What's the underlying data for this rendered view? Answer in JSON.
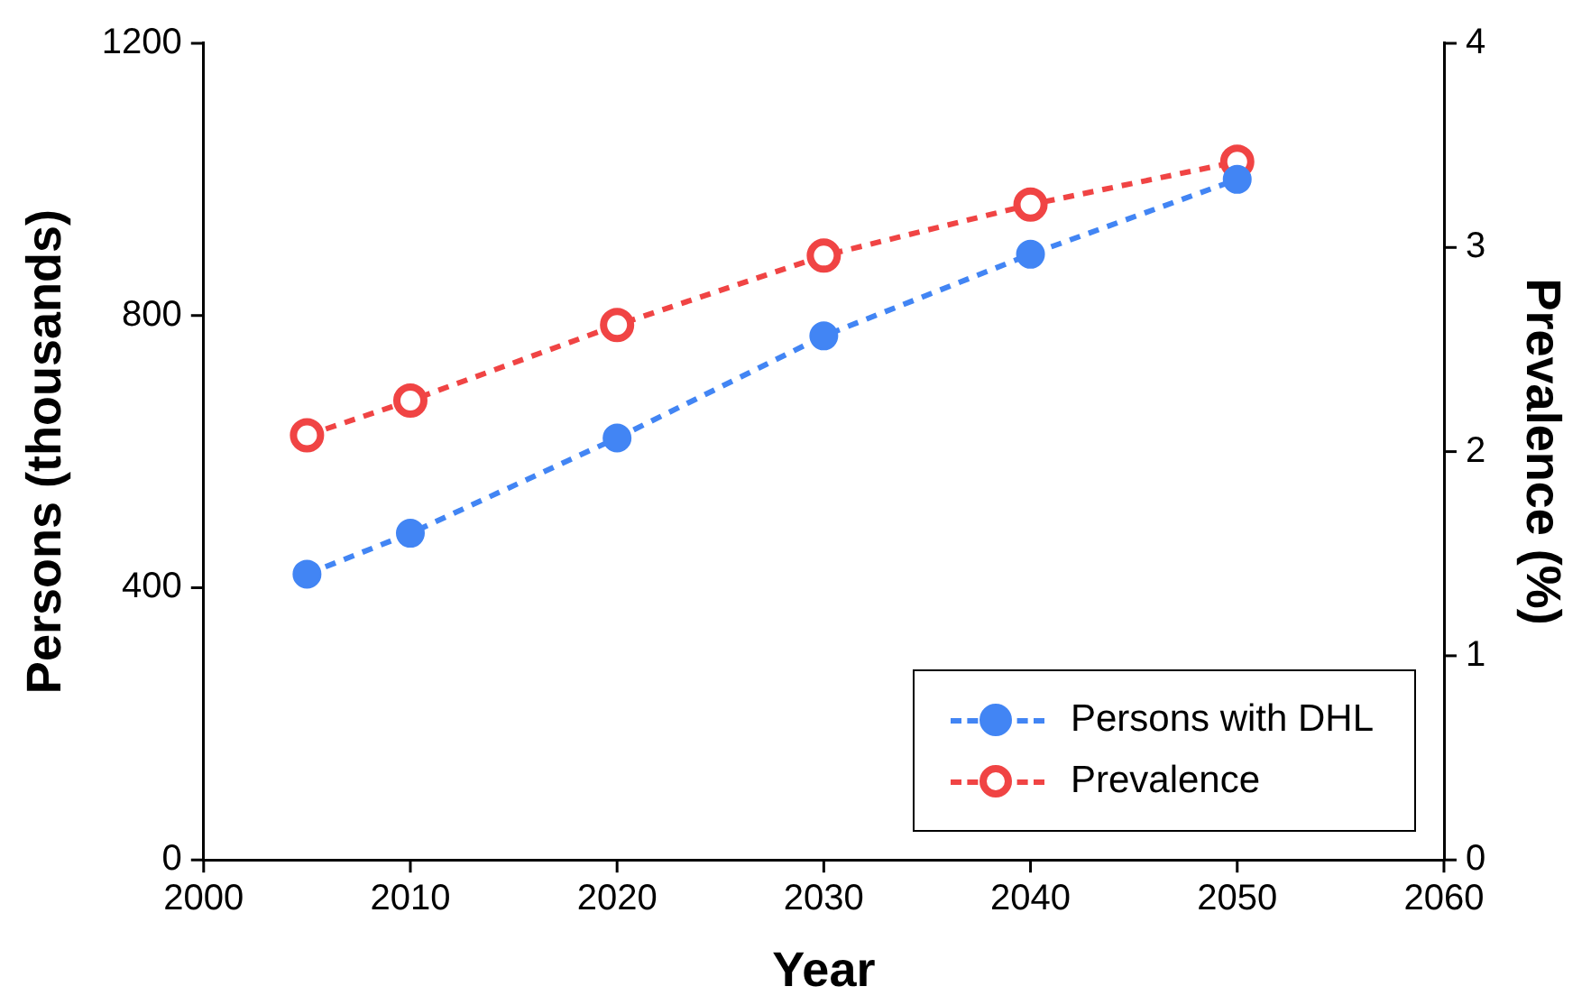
{
  "chart_data": {
    "type": "line",
    "xlabel": "Year",
    "ylabel": "Persons (thousands)",
    "y2label": "Prevalence (%)",
    "x": [
      2005,
      2010,
      2020,
      2030,
      2040,
      2050
    ],
    "series": [
      {
        "name": "Persons with DHL",
        "color": "#4285f4",
        "values": [
          420,
          480,
          620,
          770,
          890,
          1000
        ]
      },
      {
        "name": "Prevalence",
        "color": "#f04444",
        "axis": "y2",
        "values": [
          2.08,
          2.25,
          2.62,
          2.96,
          3.21,
          3.42
        ]
      }
    ],
    "xlim": [
      2000,
      2060
    ],
    "xticks": [
      2000,
      2010,
      2020,
      2030,
      2040,
      2050,
      2060
    ],
    "ylim": [
      0,
      1200
    ],
    "yticks": [
      0,
      400,
      800,
      1200
    ],
    "y2lim": [
      0,
      4
    ],
    "y2ticks": [
      0,
      1,
      2,
      3,
      4
    ],
    "grid": false,
    "legend": "bottom right",
    "marker": "circle",
    "line_style": "dashed"
  }
}
